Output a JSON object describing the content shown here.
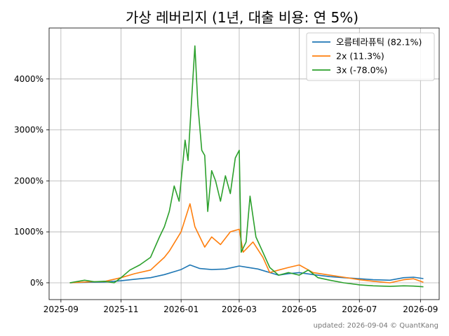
{
  "chart_data": {
    "type": "line",
    "title": "가상 레버리지 (1년, 대출 비용: 연 5%)",
    "xlabel": "",
    "ylabel": "",
    "x_range": [
      "2025-08-20",
      "2026-09-20"
    ],
    "ylim": [
      -330,
      5000
    ],
    "x_ticks": [
      "2025-09",
      "2025-11",
      "2026-01",
      "2026-03",
      "2026-05",
      "2026-07",
      "2026-09"
    ],
    "x_tick_dates": [
      "2025-09-01",
      "2025-11-01",
      "2026-01-01",
      "2026-03-01",
      "2026-05-01",
      "2026-07-01",
      "2026-09-01"
    ],
    "y_ticks": [
      0,
      1000,
      2000,
      3000,
      4000
    ],
    "y_tick_labels": [
      "0%",
      "1000%",
      "2000%",
      "3000%",
      "4000%"
    ],
    "grid": true,
    "legend_position": "top-right",
    "series": [
      {
        "name": "오름테라퓨틱 (82.1%)",
        "color": "#1f77b4",
        "points": [
          [
            "2025-09-10",
            0
          ],
          [
            "2025-10-01",
            10
          ],
          [
            "2025-10-15",
            15
          ],
          [
            "2025-11-01",
            40
          ],
          [
            "2025-11-15",
            70
          ],
          [
            "2025-12-01",
            100
          ],
          [
            "2025-12-15",
            160
          ],
          [
            "2026-01-01",
            260
          ],
          [
            "2026-01-10",
            350
          ],
          [
            "2026-01-20",
            280
          ],
          [
            "2026-02-01",
            260
          ],
          [
            "2026-02-15",
            270
          ],
          [
            "2026-03-01",
            330
          ],
          [
            "2026-03-10",
            300
          ],
          [
            "2026-03-20",
            270
          ],
          [
            "2026-04-01",
            200
          ],
          [
            "2026-04-10",
            150
          ],
          [
            "2026-04-20",
            180
          ],
          [
            "2026-05-01",
            200
          ],
          [
            "2026-05-15",
            160
          ],
          [
            "2026-06-01",
            120
          ],
          [
            "2026-06-15",
            100
          ],
          [
            "2026-07-01",
            80
          ],
          [
            "2026-07-15",
            60
          ],
          [
            "2026-08-01",
            50
          ],
          [
            "2026-08-15",
            100
          ],
          [
            "2026-08-25",
            110
          ],
          [
            "2026-09-04",
            82
          ]
        ]
      },
      {
        "name": "2x (11.3%)",
        "color": "#ff7f0e",
        "points": [
          [
            "2025-09-10",
            0
          ],
          [
            "2025-10-01",
            20
          ],
          [
            "2025-10-15",
            25
          ],
          [
            "2025-11-01",
            100
          ],
          [
            "2025-11-15",
            180
          ],
          [
            "2025-12-01",
            250
          ],
          [
            "2025-12-15",
            500
          ],
          [
            "2025-12-20",
            620
          ],
          [
            "2026-01-01",
            1000
          ],
          [
            "2026-01-10",
            1550
          ],
          [
            "2026-01-15",
            1100
          ],
          [
            "2026-01-25",
            700
          ],
          [
            "2026-02-01",
            900
          ],
          [
            "2026-02-10",
            750
          ],
          [
            "2026-02-20",
            1000
          ],
          [
            "2026-03-01",
            1050
          ],
          [
            "2026-03-05",
            600
          ],
          [
            "2026-03-15",
            800
          ],
          [
            "2026-03-25",
            500
          ],
          [
            "2026-04-01",
            200
          ],
          [
            "2026-04-10",
            250
          ],
          [
            "2026-04-20",
            300
          ],
          [
            "2026-05-01",
            350
          ],
          [
            "2026-05-15",
            200
          ],
          [
            "2026-06-01",
            150
          ],
          [
            "2026-06-15",
            110
          ],
          [
            "2026-07-01",
            60
          ],
          [
            "2026-07-15",
            30
          ],
          [
            "2026-08-01",
            0
          ],
          [
            "2026-08-15",
            60
          ],
          [
            "2026-08-25",
            80
          ],
          [
            "2026-09-04",
            11
          ]
        ]
      },
      {
        "name": "3x (-78.0%)",
        "color": "#2ca02c",
        "points": [
          [
            "2025-09-10",
            0
          ],
          [
            "2025-09-25",
            50
          ],
          [
            "2025-10-05",
            20
          ],
          [
            "2025-10-15",
            30
          ],
          [
            "2025-10-25",
            0
          ],
          [
            "2025-11-01",
            100
          ],
          [
            "2025-11-10",
            250
          ],
          [
            "2025-11-20",
            350
          ],
          [
            "2025-12-01",
            500
          ],
          [
            "2025-12-10",
            900
          ],
          [
            "2025-12-15",
            1100
          ],
          [
            "2025-12-20",
            1400
          ],
          [
            "2025-12-25",
            1900
          ],
          [
            "2025-12-30",
            1600
          ],
          [
            "2026-01-05",
            2800
          ],
          [
            "2026-01-08",
            2400
          ],
          [
            "2026-01-12",
            3700
          ],
          [
            "2026-01-15",
            4650
          ],
          [
            "2026-01-18",
            3500
          ],
          [
            "2026-01-22",
            2600
          ],
          [
            "2026-01-25",
            2500
          ],
          [
            "2026-01-28",
            1400
          ],
          [
            "2026-02-01",
            2200
          ],
          [
            "2026-02-05",
            2000
          ],
          [
            "2026-02-10",
            1600
          ],
          [
            "2026-02-15",
            2100
          ],
          [
            "2026-02-20",
            1750
          ],
          [
            "2026-02-25",
            2450
          ],
          [
            "2026-03-01",
            2600
          ],
          [
            "2026-03-03",
            600
          ],
          [
            "2026-03-08",
            800
          ],
          [
            "2026-03-12",
            1700
          ],
          [
            "2026-03-18",
            900
          ],
          [
            "2026-03-25",
            600
          ],
          [
            "2026-04-01",
            300
          ],
          [
            "2026-04-10",
            150
          ],
          [
            "2026-04-20",
            200
          ],
          [
            "2026-05-01",
            150
          ],
          [
            "2026-05-10",
            250
          ],
          [
            "2026-05-20",
            100
          ],
          [
            "2026-06-01",
            50
          ],
          [
            "2026-06-15",
            0
          ],
          [
            "2026-07-01",
            -40
          ],
          [
            "2026-07-15",
            -60
          ],
          [
            "2026-08-01",
            -70
          ],
          [
            "2026-08-15",
            -60
          ],
          [
            "2026-08-25",
            -65
          ],
          [
            "2026-09-04",
            -78
          ]
        ]
      }
    ]
  },
  "footer": "updated: 2026-09-04 © QuantKang"
}
